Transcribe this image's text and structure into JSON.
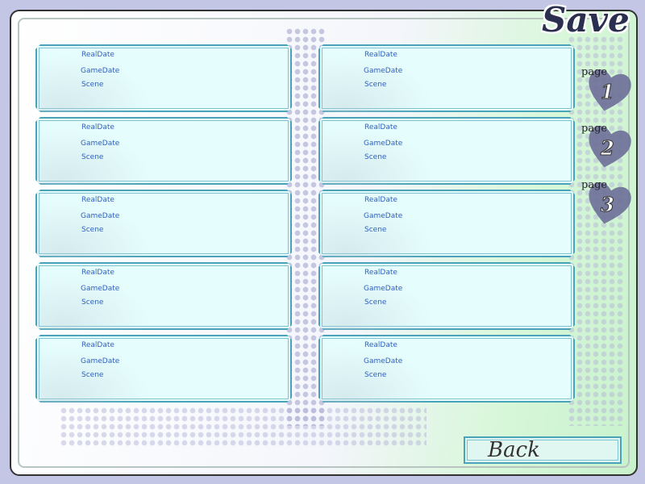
{
  "title": "Save",
  "slots": [
    {
      "real_date": "RealDate",
      "game_date": "GameDate",
      "scene": "Scene"
    },
    {
      "real_date": "RealDate",
      "game_date": "GameDate",
      "scene": "Scene"
    },
    {
      "real_date": "RealDate",
      "game_date": "GameDate",
      "scene": "Scene"
    },
    {
      "real_date": "RealDate",
      "game_date": "GameDate",
      "scene": "Scene"
    },
    {
      "real_date": "RealDate",
      "game_date": "GameDate",
      "scene": "Scene"
    },
    {
      "real_date": "RealDate",
      "game_date": "GameDate",
      "scene": "Scene"
    },
    {
      "real_date": "RealDate",
      "game_date": "GameDate",
      "scene": "Scene"
    },
    {
      "real_date": "RealDate",
      "game_date": "GameDate",
      "scene": "Scene"
    },
    {
      "real_date": "RealDate",
      "game_date": "GameDate",
      "scene": "Scene"
    },
    {
      "real_date": "RealDate",
      "game_date": "GameDate",
      "scene": "Scene"
    }
  ],
  "pages": [
    {
      "label": "page",
      "number": "1"
    },
    {
      "label": "page",
      "number": "2"
    },
    {
      "label": "page",
      "number": "3"
    }
  ],
  "back_label": "Back",
  "icons": {
    "page": "heart-icon"
  }
}
